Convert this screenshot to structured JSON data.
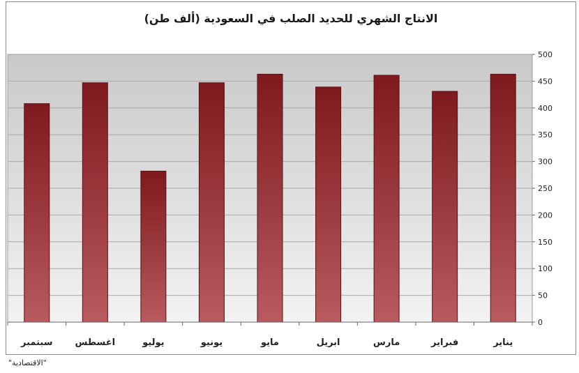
{
  "chart_data": {
    "type": "bar",
    "title": "الانتاج الشهري للحديد الصلب في السعودية (ألف طن)",
    "categories": [
      "سبتمبر",
      "اغسطس",
      "يوليو",
      "يونيو",
      "مايو",
      "ابريل",
      "مارس",
      "فبراير",
      "يناير"
    ],
    "values": [
      408,
      447,
      282,
      447,
      463,
      439,
      461,
      431,
      463
    ],
    "ylim": [
      0,
      500
    ],
    "yticks": [
      0,
      50,
      100,
      150,
      200,
      250,
      300,
      350,
      400,
      450,
      500
    ],
    "y_axis_side": "right",
    "grid": true,
    "legend": "none",
    "bar_color_top": "#7e1a1e",
    "bar_color_bottom": "#b85a5e"
  },
  "source": "\"الاقتصادية\""
}
